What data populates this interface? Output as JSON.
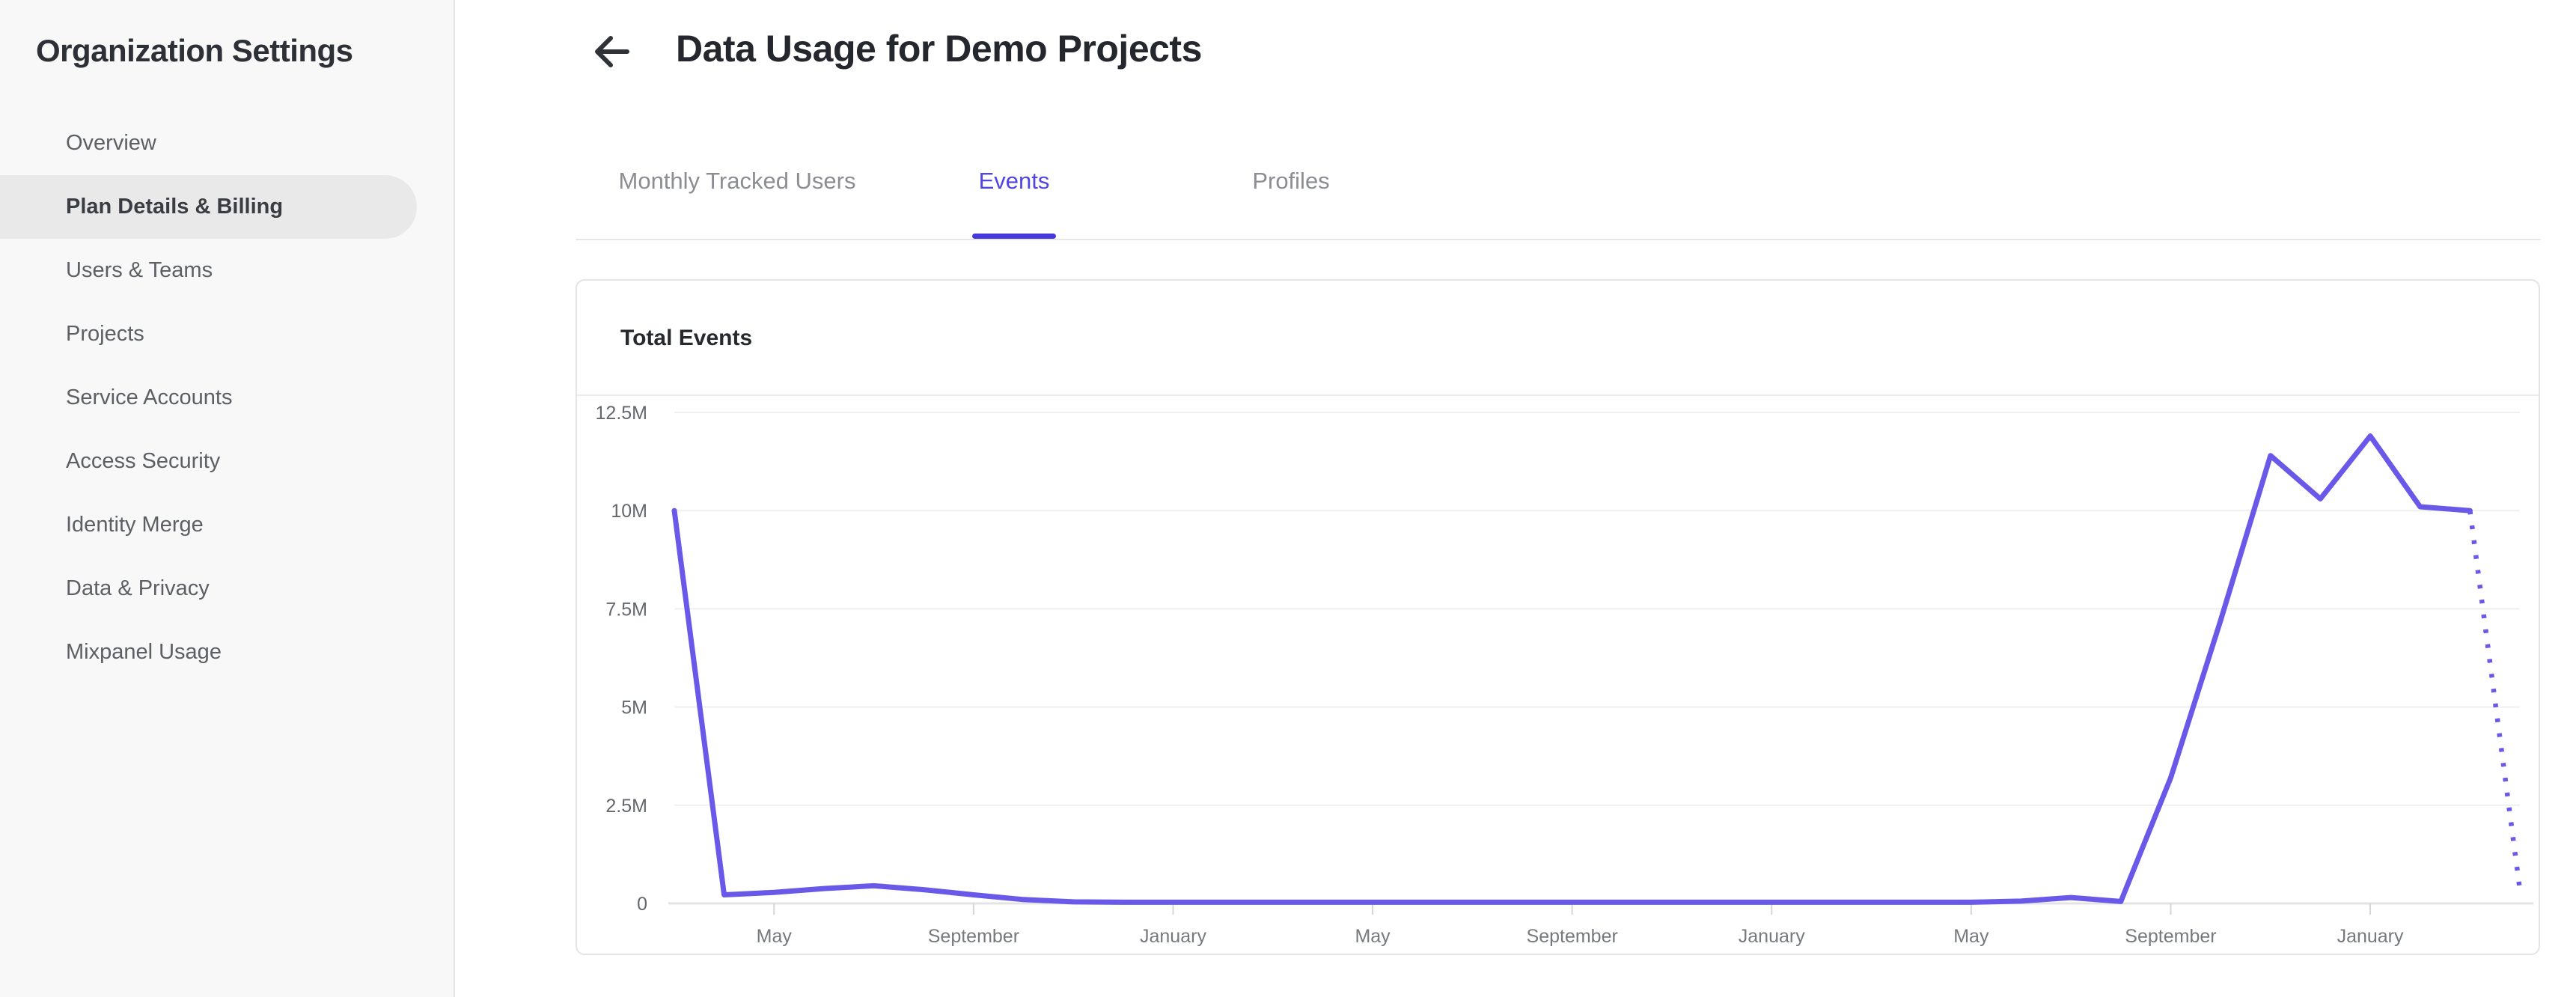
{
  "sidebar": {
    "title": "Organization Settings",
    "items": [
      {
        "label": "Overview",
        "active": false
      },
      {
        "label": "Plan Details & Billing",
        "active": true
      },
      {
        "label": "Users & Teams",
        "active": false
      },
      {
        "label": "Projects",
        "active": false
      },
      {
        "label": "Service Accounts",
        "active": false
      },
      {
        "label": "Access Security",
        "active": false
      },
      {
        "label": "Identity Merge",
        "active": false
      },
      {
        "label": "Data & Privacy",
        "active": false
      },
      {
        "label": "Mixpanel Usage",
        "active": false
      }
    ]
  },
  "header": {
    "back_icon": "arrow-left-icon",
    "title": "Data Usage for Demo Projects"
  },
  "tabs": [
    {
      "label": "Monthly Tracked Users",
      "active": false
    },
    {
      "label": "Events",
      "active": true
    },
    {
      "label": "Profiles",
      "active": false
    }
  ],
  "colors": {
    "accent_tab_text": "#5145e1",
    "accent_tab_underline": "#4638da",
    "chart_line": "#6a59e8",
    "sidebar_selected_bg": "#e9e9ea"
  },
  "chart_data": {
    "type": "line",
    "title": "Total Events",
    "ylabel": "",
    "xlabel": "",
    "grid": true,
    "legend": "none",
    "y_axis": {
      "tick_labels": [
        "0",
        "2.5M",
        "5M",
        "7.5M",
        "10M",
        "12.5M"
      ],
      "tick_step_millions": 2.5,
      "ylim_millions": [
        0,
        12.5
      ]
    },
    "x_axis": {
      "tick_labels": [
        "May",
        "September",
        "January",
        "May",
        "September",
        "January",
        "May",
        "September",
        "January"
      ],
      "tick_point_index": [
        2,
        6,
        10,
        14,
        18,
        22,
        26,
        30,
        34
      ],
      "months_between_ticks": 4
    },
    "series": [
      {
        "name": "Total Events",
        "color": "#6a59e8",
        "unit": "millions of events",
        "values_millions": [
          10,
          0.22,
          0.28,
          0.38,
          0.45,
          0.35,
          0.22,
          0.1,
          0.04,
          0.03,
          0.03,
          0.03,
          0.03,
          0.03,
          0.03,
          0.03,
          0.03,
          0.03,
          0.03,
          0.03,
          0.03,
          0.03,
          0.03,
          0.03,
          0.03,
          0.03,
          0.03,
          0.06,
          0.15,
          0.05,
          3.2,
          7.2,
          11.4,
          10.3,
          11.9,
          10.1,
          10,
          0.35
        ],
        "last_segment_style": "dotted"
      }
    ]
  }
}
